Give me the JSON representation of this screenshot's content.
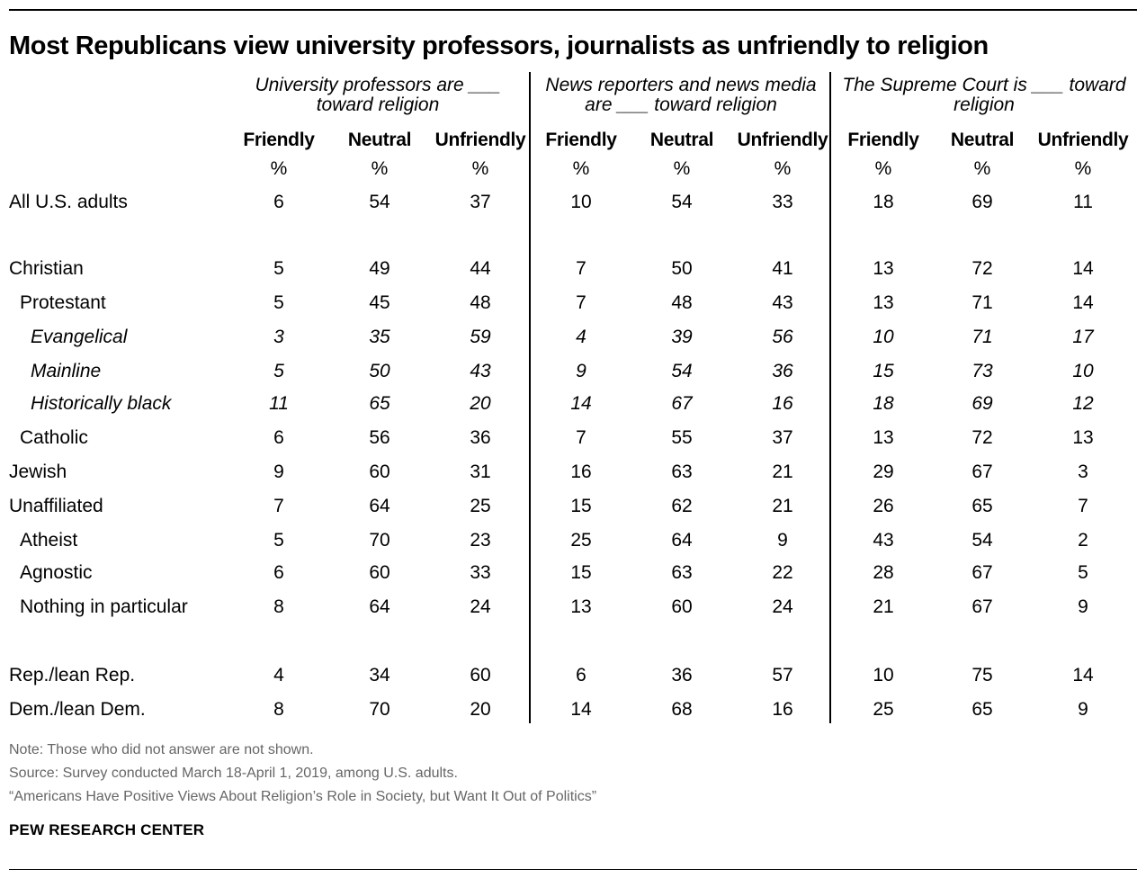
{
  "title": "Most Republicans view university professors, journalists as unfriendly to religion",
  "groups": [
    {
      "line1": "University professors are ___",
      "line2": "toward religion"
    },
    {
      "line1": "News reporters and news media",
      "line2": "are ___ toward religion"
    },
    {
      "line1": "The Supreme Court is ___ toward",
      "line2": "religion"
    }
  ],
  "column_headers": [
    "Friendly",
    "Neutral",
    "Unfriendly",
    "Friendly",
    "Neutral",
    "Unfriendly",
    "Friendly",
    "Neutral",
    "Unfriendly"
  ],
  "unit_symbol": "%",
  "rows": [
    {
      "label": "All U.S. adults",
      "indent": 0,
      "italic": false,
      "values": [
        "6",
        "54",
        "37",
        "10",
        "54",
        "33",
        "18",
        "69",
        "11"
      ]
    },
    {
      "label": "Christian",
      "indent": 0,
      "italic": false,
      "values": [
        "5",
        "49",
        "44",
        "7",
        "50",
        "41",
        "13",
        "72",
        "14"
      ]
    },
    {
      "label": "Protestant",
      "indent": 1,
      "italic": false,
      "values": [
        "5",
        "45",
        "48",
        "7",
        "48",
        "43",
        "13",
        "71",
        "14"
      ]
    },
    {
      "label": "Evangelical",
      "indent": 2,
      "italic": true,
      "values": [
        "3",
        "35",
        "59",
        "4",
        "39",
        "56",
        "10",
        "71",
        "17"
      ]
    },
    {
      "label": "Mainline",
      "indent": 2,
      "italic": true,
      "values": [
        "5",
        "50",
        "43",
        "9",
        "54",
        "36",
        "15",
        "73",
        "10"
      ]
    },
    {
      "label": "Historically black",
      "indent": 2,
      "italic": true,
      "values": [
        "11",
        "65",
        "20",
        "14",
        "67",
        "16",
        "18",
        "69",
        "12"
      ]
    },
    {
      "label": "Catholic",
      "indent": 1,
      "italic": false,
      "values": [
        "6",
        "56",
        "36",
        "7",
        "55",
        "37",
        "13",
        "72",
        "13"
      ]
    },
    {
      "label": "Jewish",
      "indent": 0,
      "italic": false,
      "values": [
        "9",
        "60",
        "31",
        "16",
        "63",
        "21",
        "29",
        "67",
        "3"
      ]
    },
    {
      "label": "Unaffiliated",
      "indent": 0,
      "italic": false,
      "values": [
        "7",
        "64",
        "25",
        "15",
        "62",
        "21",
        "26",
        "65",
        "7"
      ]
    },
    {
      "label": "Atheist",
      "indent": 1,
      "italic": false,
      "values": [
        "5",
        "70",
        "23",
        "25",
        "64",
        "9",
        "43",
        "54",
        "2"
      ]
    },
    {
      "label": "Agnostic",
      "indent": 1,
      "italic": false,
      "values": [
        "6",
        "60",
        "33",
        "15",
        "63",
        "22",
        "28",
        "67",
        "5"
      ]
    },
    {
      "label": "Nothing in particular",
      "indent": 1,
      "italic": false,
      "values": [
        "8",
        "64",
        "24",
        "13",
        "60",
        "24",
        "21",
        "67",
        "9"
      ]
    },
    {
      "label": "Rep./lean Rep.",
      "indent": 0,
      "italic": false,
      "values": [
        "4",
        "34",
        "60",
        "6",
        "36",
        "57",
        "10",
        "75",
        "14"
      ]
    },
    {
      "label": "Dem./lean Dem.",
      "indent": 0,
      "italic": false,
      "values": [
        "8",
        "70",
        "20",
        "14",
        "68",
        "16",
        "25",
        "65",
        "9"
      ]
    }
  ],
  "chart_data": {
    "type": "table",
    "title": "Most Republicans view university professors, journalists as unfriendly to religion",
    "column_groups": [
      "University professors are ___ toward religion",
      "News reporters and news media are ___ toward religion",
      "The Supreme Court is ___ toward religion"
    ],
    "columns": [
      "Friendly",
      "Neutral",
      "Unfriendly"
    ],
    "unit": "%",
    "rows": [
      {
        "label": "All U.S. adults",
        "values": [
          6,
          54,
          37,
          10,
          54,
          33,
          18,
          69,
          11
        ]
      },
      {
        "label": "Christian",
        "values": [
          5,
          49,
          44,
          7,
          50,
          41,
          13,
          72,
          14
        ]
      },
      {
        "label": "Protestant",
        "values": [
          5,
          45,
          48,
          7,
          48,
          43,
          13,
          71,
          14
        ]
      },
      {
        "label": "Evangelical",
        "values": [
          3,
          35,
          59,
          4,
          39,
          56,
          10,
          71,
          17
        ]
      },
      {
        "label": "Mainline",
        "values": [
          5,
          50,
          43,
          9,
          54,
          36,
          15,
          73,
          10
        ]
      },
      {
        "label": "Historically black",
        "values": [
          11,
          65,
          20,
          14,
          67,
          16,
          18,
          69,
          12
        ]
      },
      {
        "label": "Catholic",
        "values": [
          6,
          56,
          36,
          7,
          55,
          37,
          13,
          72,
          13
        ]
      },
      {
        "label": "Jewish",
        "values": [
          9,
          60,
          31,
          16,
          63,
          21,
          29,
          67,
          3
        ]
      },
      {
        "label": "Unaffiliated",
        "values": [
          7,
          64,
          25,
          15,
          62,
          21,
          26,
          65,
          7
        ]
      },
      {
        "label": "Atheist",
        "values": [
          5,
          70,
          23,
          25,
          64,
          9,
          43,
          54,
          2
        ]
      },
      {
        "label": "Agnostic",
        "values": [
          6,
          60,
          33,
          15,
          63,
          22,
          28,
          67,
          5
        ]
      },
      {
        "label": "Nothing in particular",
        "values": [
          8,
          64,
          24,
          13,
          60,
          24,
          21,
          67,
          9
        ]
      },
      {
        "label": "Rep./lean Rep.",
        "values": [
          4,
          34,
          60,
          6,
          36,
          57,
          10,
          75,
          14
        ]
      },
      {
        "label": "Dem./lean Dem.",
        "values": [
          8,
          70,
          20,
          14,
          68,
          16,
          25,
          65,
          9
        ]
      }
    ]
  },
  "footer": {
    "note": "Note: Those who did not answer are not shown.",
    "source": "Source: Survey conducted March 18-April 1, 2019, among U.S. adults.",
    "report": "“Americans Have Positive Views About Religion’s Role in Society, but Want It Out of Politics”",
    "brand": "PEW RESEARCH CENTER"
  }
}
